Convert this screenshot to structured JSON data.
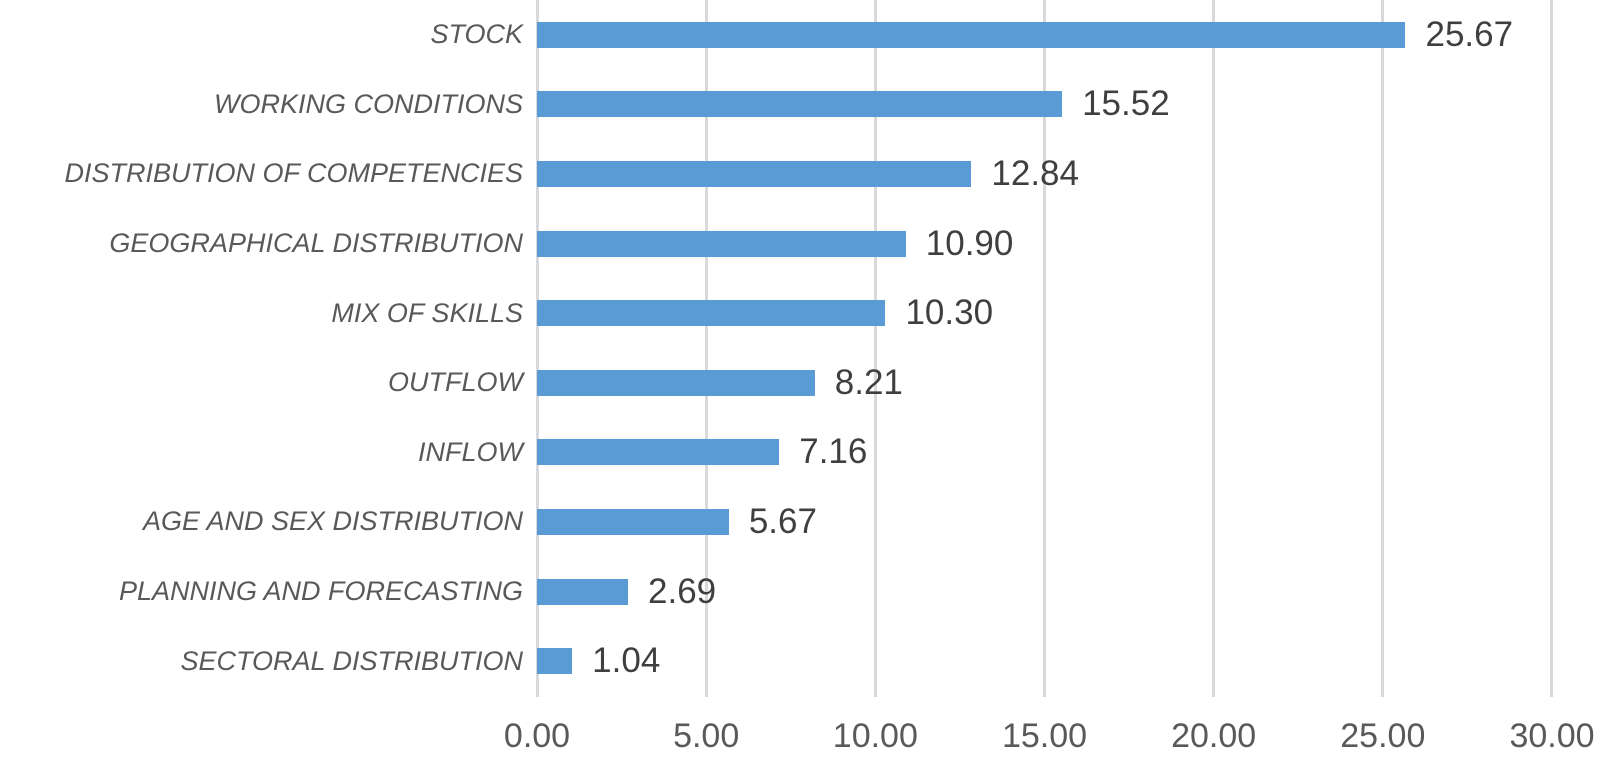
{
  "chart_data": {
    "type": "bar",
    "orientation": "horizontal",
    "title": "",
    "xlabel": "",
    "ylabel": "",
    "categories": [
      "STOCK",
      "WORKING CONDITIONS",
      "DISTRIBUTION OF COMPETENCIES",
      "GEOGRAPHICAL DISTRIBUTION",
      "MIX OF SKILLS",
      "OUTFLOW",
      "INFLOW",
      "AGE AND SEX DISTRIBUTION",
      "PLANNING AND FORECASTING",
      "SECTORAL DISTRIBUTION"
    ],
    "values": [
      25.67,
      15.52,
      12.84,
      10.9,
      10.3,
      8.21,
      7.16,
      5.67,
      2.69,
      1.04
    ],
    "value_labels": [
      "25.67",
      "15.52",
      "12.84",
      "10.90",
      "10.30",
      "8.21",
      "7.16",
      "5.67",
      "2.69",
      "1.04"
    ],
    "x_ticks": [
      "0.00",
      "5.00",
      "10.00",
      "15.00",
      "20.00",
      "25.00",
      "30.00"
    ],
    "x_tick_values": [
      0,
      5,
      10,
      15,
      20,
      25,
      30
    ],
    "xlim": [
      0,
      30
    ],
    "grid": "vertical-gridlines-on",
    "legend": "none",
    "colors": {
      "bar": "#5b9bd5",
      "gridline": "#d9d9d9",
      "category_label": "#595959",
      "value_label": "#3f3f3f",
      "axis_label": "#595959"
    }
  }
}
